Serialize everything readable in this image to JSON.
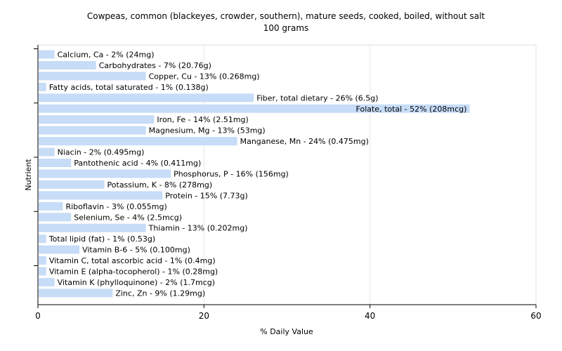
{
  "chart_data": {
    "type": "bar",
    "orientation": "horizontal",
    "title": "Cowpeas, common (blackeyes, crowder, southern), mature seeds, cooked, boiled, without salt",
    "subtitle": "100 grams",
    "xlabel": "% Daily Value",
    "ylabel": "Nutrient",
    "xlim": [
      0,
      60
    ],
    "xticks": [
      0,
      20,
      40,
      60
    ],
    "grid": true,
    "bar_color": "#c6dcf7",
    "bars": [
      {
        "label": "Calcium, Ca - 2% (24mg)",
        "value": 2
      },
      {
        "label": "Carbohydrates - 7% (20.76g)",
        "value": 7
      },
      {
        "label": "Copper, Cu - 13% (0.268mg)",
        "value": 13
      },
      {
        "label": "Fatty acids, total saturated - 1% (0.138g)",
        "value": 1
      },
      {
        "label": "Fiber, total dietary - 26% (6.5g)",
        "value": 26
      },
      {
        "label": "Folate, total - 52% (208mcg)",
        "value": 52
      },
      {
        "label": "Iron, Fe - 14% (2.51mg)",
        "value": 14
      },
      {
        "label": "Magnesium, Mg - 13% (53mg)",
        "value": 13
      },
      {
        "label": "Manganese, Mn - 24% (0.475mg)",
        "value": 24
      },
      {
        "label": "Niacin - 2% (0.495mg)",
        "value": 2
      },
      {
        "label": "Pantothenic acid - 4% (0.411mg)",
        "value": 4
      },
      {
        "label": "Phosphorus, P - 16% (156mg)",
        "value": 16
      },
      {
        "label": "Potassium, K - 8% (278mg)",
        "value": 8
      },
      {
        "label": "Protein - 15% (7.73g)",
        "value": 15
      },
      {
        "label": "Riboflavin - 3% (0.055mg)",
        "value": 3
      },
      {
        "label": "Selenium, Se - 4% (2.5mcg)",
        "value": 4
      },
      {
        "label": "Thiamin - 13% (0.202mg)",
        "value": 13
      },
      {
        "label": "Total lipid (fat) - 1% (0.53g)",
        "value": 1
      },
      {
        "label": "Vitamin B-6 - 5% (0.100mg)",
        "value": 5
      },
      {
        "label": "Vitamin C, total ascorbic acid - 1% (0.4mg)",
        "value": 1
      },
      {
        "label": "Vitamin E (alpha-tocopherol) - 1% (0.28mg)",
        "value": 1
      },
      {
        "label": "Vitamin K (phylloquinone) - 2% (1.7mcg)",
        "value": 2
      },
      {
        "label": "Zinc, Zn - 9% (1.29mg)",
        "value": 9
      }
    ]
  }
}
